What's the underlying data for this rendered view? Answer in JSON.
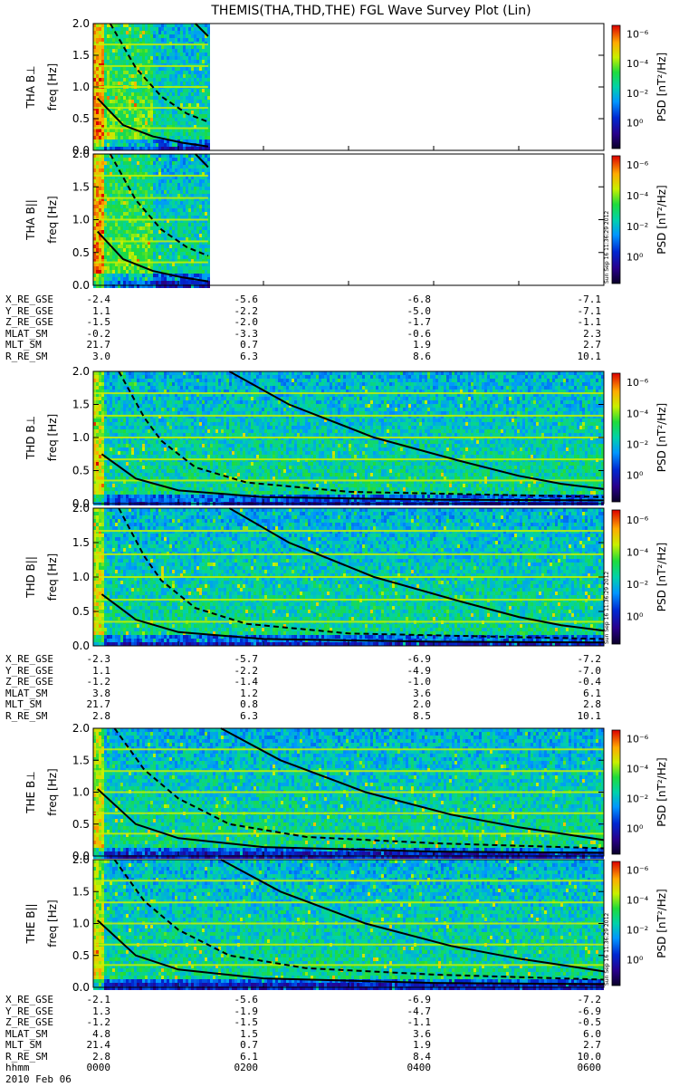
{
  "title": "THEMIS(THA,THD,THE) FGL Wave Survey Plot (Lin)",
  "stamp": "Sun Sep 16 11:36:29 2012",
  "colorbar": {
    "label": "PSD [nT²/Hz]",
    "ticks": [
      "10⁰",
      "10⁻²",
      "10⁻⁴",
      "10⁻⁶"
    ]
  },
  "chart_data": [
    {
      "type": "heatmap",
      "title": "THEMIS(THA,THD,THE) FGL Wave Survey Plot (Lin)",
      "probe": "THA",
      "panels": [
        {
          "ylabel": "THA B⊥ freq [Hz]",
          "ylim": [
            0,
            2.0
          ],
          "yticks": [
            "0.0",
            "0.5",
            "1.0",
            "1.5",
            "2.0"
          ]
        },
        {
          "ylabel": "THA B|| freq [Hz]",
          "ylim": [
            0,
            2.0
          ],
          "yticks": [
            "0.0",
            "0.5",
            "1.0",
            "1.5",
            "2.0"
          ]
        }
      ],
      "xlim_hours": [
        0,
        6
      ],
      "data_end_hours": 1.35,
      "colorbar": {
        "label": "PSD [nT²/Hz]",
        "scale": "log",
        "range": [
          1e-06,
          10
        ]
      },
      "cyclotron_lines": [
        {
          "name": "fce",
          "style": "solid",
          "freq": [
            [
              0.05,
              0.82
            ],
            [
              0.35,
              0.4
            ],
            [
              0.7,
              0.22
            ],
            [
              1.05,
              0.12
            ],
            [
              1.35,
              0.06
            ]
          ]
        },
        {
          "name": "fce/2",
          "style": "dashed",
          "freq": [
            [
              0.2,
              2.0
            ],
            [
              0.5,
              1.3
            ],
            [
              0.8,
              0.85
            ],
            [
              1.1,
              0.58
            ],
            [
              1.35,
              0.45
            ]
          ]
        },
        {
          "name": "fce_upper",
          "style": "solid",
          "freq": [
            [
              1.2,
              2.0
            ],
            [
              1.35,
              1.8
            ]
          ]
        }
      ],
      "ephemeris": [
        {
          "label": "X_RE_GSE",
          "values": [
            "-2.4",
            "-5.6",
            "-6.8",
            "-7.1"
          ]
        },
        {
          "label": "Y_RE_GSE",
          "values": [
            "1.1",
            "-2.2",
            "-5.0",
            "-7.1"
          ]
        },
        {
          "label": "Z_RE_GSE",
          "values": [
            "-1.5",
            "-2.0",
            "-1.7",
            "-1.1"
          ]
        },
        {
          "label": "MLAT_SM",
          "values": [
            "-0.2",
            "-3.3",
            "-0.6",
            "2.3"
          ]
        },
        {
          "label": "MLT_SM",
          "values": [
            "21.7",
            "0.7",
            "1.9",
            "2.7"
          ]
        },
        {
          "label": "R_RE_SM",
          "values": [
            "3.0",
            "6.3",
            "8.6",
            "10.1"
          ]
        }
      ]
    },
    {
      "type": "heatmap",
      "probe": "THD",
      "panels": [
        {
          "ylabel": "THD B⊥ freq [Hz]",
          "ylim": [
            0,
            2.0
          ],
          "yticks": [
            "0.0",
            "0.5",
            "1.0",
            "1.5",
            "2.0"
          ]
        },
        {
          "ylabel": "THD B|| freq [Hz]",
          "ylim": [
            0,
            2.0
          ],
          "yticks": [
            "0.0",
            "0.5",
            "1.0",
            "1.5",
            "2.0"
          ]
        }
      ],
      "xlim_hours": [
        0,
        6
      ],
      "data_end_hours": 6,
      "colorbar": {
        "label": "PSD [nT²/Hz]",
        "scale": "log",
        "range": [
          1e-06,
          10
        ]
      },
      "cyclotron_lines": [
        {
          "name": "fce",
          "style": "solid",
          "freq": [
            [
              0.1,
              0.75
            ],
            [
              0.5,
              0.38
            ],
            [
              1.0,
              0.2
            ],
            [
              2.0,
              0.1
            ],
            [
              4.0,
              0.06
            ],
            [
              6.0,
              0.05
            ]
          ]
        },
        {
          "name": "fce/2",
          "style": "dashed",
          "freq": [
            [
              0.3,
              2.0
            ],
            [
              0.6,
              1.3
            ],
            [
              0.8,
              0.95
            ],
            [
              1.2,
              0.55
            ],
            [
              1.8,
              0.32
            ],
            [
              3.0,
              0.18
            ],
            [
              6.0,
              0.1
            ]
          ]
        },
        {
          "name": "fce_upper",
          "style": "solid",
          "freq": [
            [
              1.6,
              2.0
            ],
            [
              2.3,
              1.5
            ],
            [
              3.3,
              1.0
            ],
            [
              4.3,
              0.65
            ],
            [
              5.0,
              0.42
            ],
            [
              5.5,
              0.3
            ],
            [
              6.0,
              0.22
            ]
          ]
        }
      ],
      "ephemeris": [
        {
          "label": "X_RE_GSE",
          "values": [
            "-2.3",
            "-5.7",
            "-6.9",
            "-7.2"
          ]
        },
        {
          "label": "Y_RE_GSE",
          "values": [
            "1.1",
            "-2.2",
            "-4.9",
            "-7.0"
          ]
        },
        {
          "label": "Z_RE_GSE",
          "values": [
            "-1.2",
            "-1.4",
            "-1.0",
            "-0.4"
          ]
        },
        {
          "label": "MLAT_SM",
          "values": [
            "3.8",
            "1.2",
            "3.6",
            "6.1"
          ]
        },
        {
          "label": "MLT_SM",
          "values": [
            "21.7",
            "0.8",
            "2.0",
            "2.8"
          ]
        },
        {
          "label": "R_RE_SM",
          "values": [
            "2.8",
            "6.3",
            "8.5",
            "10.1"
          ]
        }
      ]
    },
    {
      "type": "heatmap",
      "probe": "THE",
      "panels": [
        {
          "ylabel": "THE B⊥ freq [Hz]",
          "ylim": [
            0,
            2.0
          ],
          "yticks": [
            "0.0",
            "0.5",
            "1.0",
            "1.5",
            "2.0"
          ]
        },
        {
          "ylabel": "THE B|| freq [Hz]",
          "ylim": [
            0,
            2.0
          ],
          "yticks": [
            "0.0",
            "0.5",
            "1.0",
            "1.5",
            "2.0"
          ]
        }
      ],
      "xlim_hours": [
        0,
        6
      ],
      "data_end_hours": 6,
      "colorbar": {
        "label": "PSD [nT²/Hz]",
        "scale": "log",
        "range": [
          1e-06,
          10
        ]
      },
      "cyclotron_lines": [
        {
          "name": "fce",
          "style": "solid",
          "freq": [
            [
              0.05,
              1.05
            ],
            [
              0.5,
              0.5
            ],
            [
              1.0,
              0.28
            ],
            [
              2.0,
              0.14
            ],
            [
              4.0,
              0.07
            ],
            [
              6.0,
              0.05
            ]
          ]
        },
        {
          "name": "fce/2",
          "style": "dashed",
          "freq": [
            [
              0.25,
              2.0
            ],
            [
              0.6,
              1.35
            ],
            [
              1.0,
              0.9
            ],
            [
              1.6,
              0.5
            ],
            [
              2.5,
              0.3
            ],
            [
              4.0,
              0.2
            ],
            [
              6.0,
              0.12
            ]
          ]
        },
        {
          "name": "fce_upper",
          "style": "solid",
          "freq": [
            [
              1.5,
              2.0
            ],
            [
              2.2,
              1.5
            ],
            [
              3.2,
              1.0
            ],
            [
              4.2,
              0.65
            ],
            [
              5.0,
              0.45
            ],
            [
              5.5,
              0.35
            ],
            [
              6.0,
              0.25
            ]
          ]
        }
      ],
      "ephemeris": [
        {
          "label": "X_RE_GSE",
          "values": [
            "-2.1",
            "-5.6",
            "-6.9",
            "-7.2"
          ]
        },
        {
          "label": "Y_RE_GSE",
          "values": [
            "1.3",
            "-1.9",
            "-4.7",
            "-6.9"
          ]
        },
        {
          "label": "Z_RE_GSE",
          "values": [
            "-1.2",
            "-1.5",
            "-1.1",
            "-0.5"
          ]
        },
        {
          "label": "MLAT_SM",
          "values": [
            "4.8",
            "1.5",
            "3.6",
            "6.0"
          ]
        },
        {
          "label": "MLT_SM",
          "values": [
            "21.4",
            "0.7",
            "1.9",
            "2.7"
          ]
        },
        {
          "label": "R_RE_SM",
          "values": [
            "2.8",
            "6.1",
            "8.4",
            "10.0"
          ]
        },
        {
          "label": "hhmm",
          "values": [
            "0000",
            "0200",
            "0400",
            "0600"
          ]
        }
      ],
      "date": "2010 Feb 06"
    }
  ]
}
